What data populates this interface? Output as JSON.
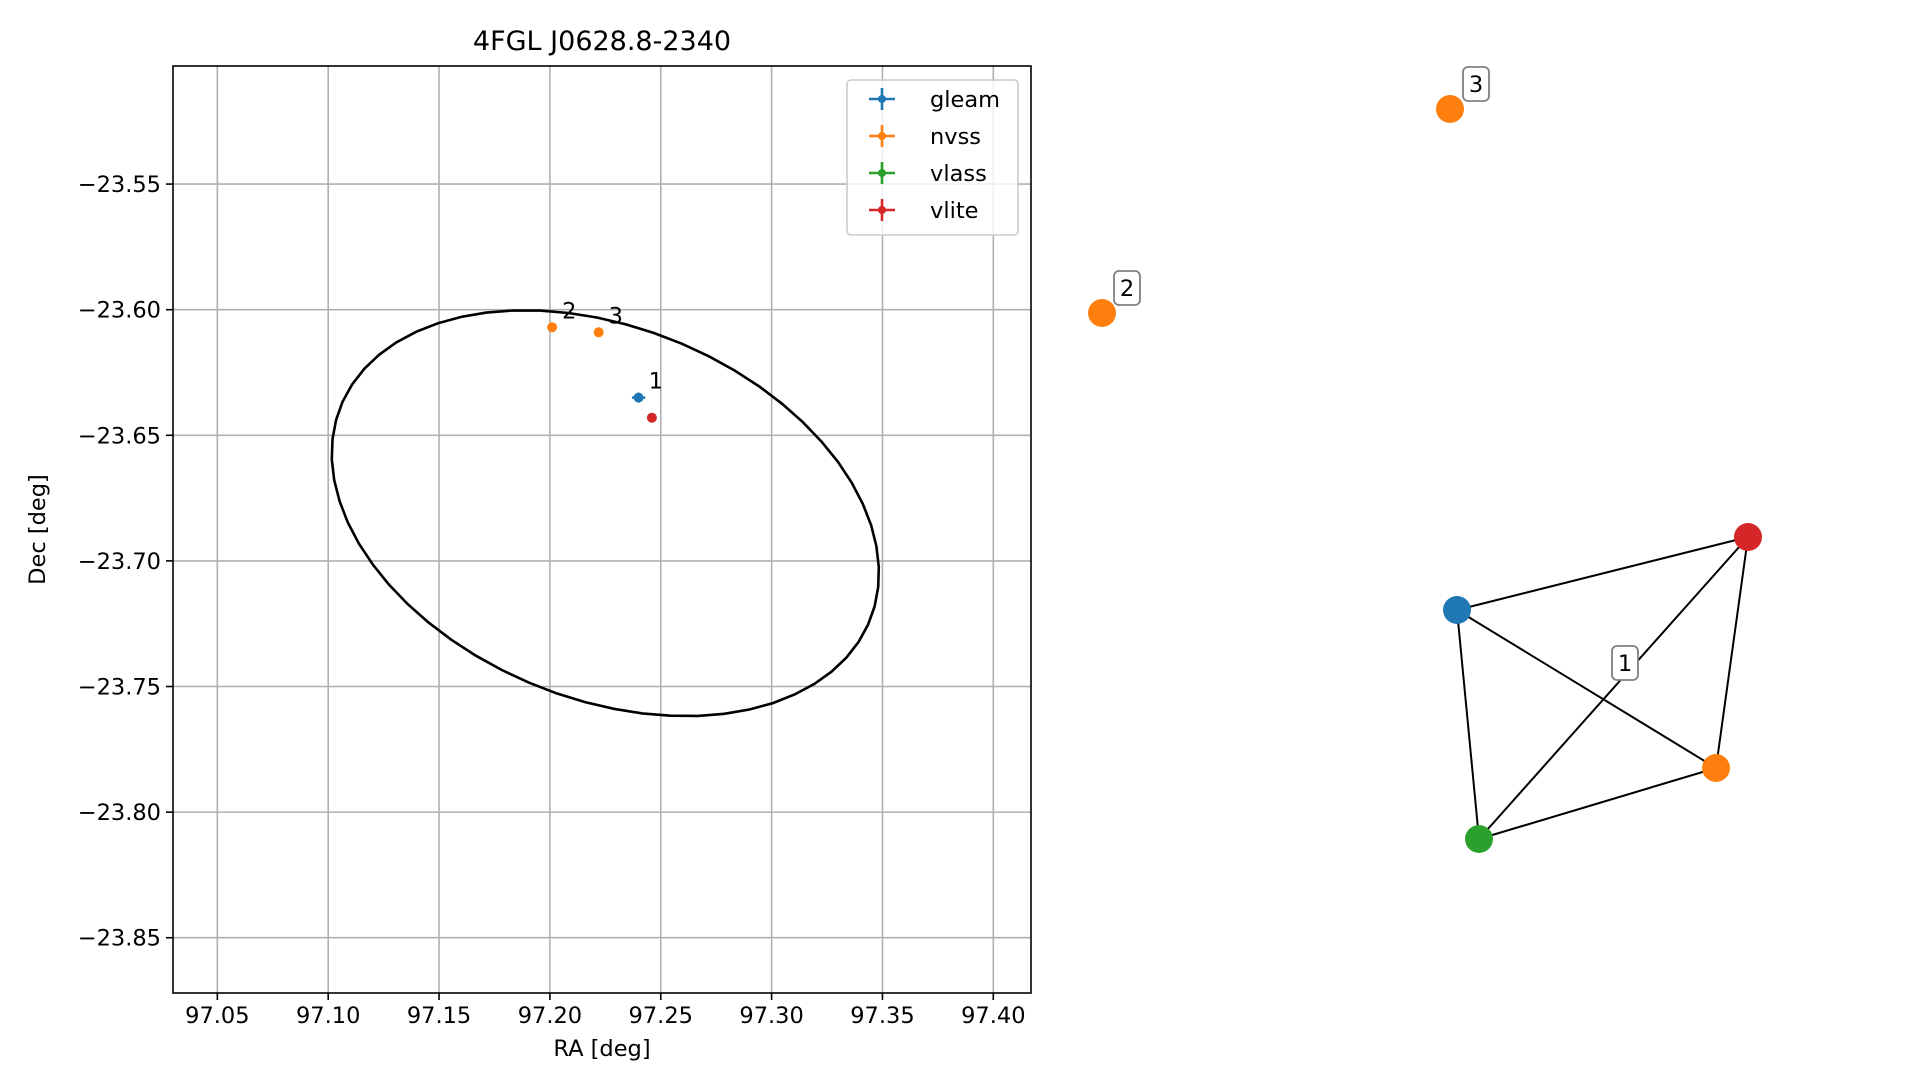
{
  "chart_data": [
    {
      "type": "scatter",
      "title": "4FGL J0628.8-2340",
      "xlabel": "RA [deg]",
      "ylabel": "Dec [deg]",
      "xlim": [
        97.03,
        97.417
      ],
      "ylim": [
        -23.872,
        -23.503
      ],
      "xticks": [
        97.05,
        97.1,
        97.15,
        97.2,
        97.25,
        97.3,
        97.35,
        97.4
      ],
      "xtick_labels": [
        "97.05",
        "97.10",
        "97.15",
        "97.20",
        "97.25",
        "97.30",
        "97.35",
        "97.40"
      ],
      "yticks": [
        -23.55,
        -23.6,
        -23.65,
        -23.7,
        -23.75,
        -23.8,
        -23.85
      ],
      "ytick_labels": [
        "−23.55",
        "−23.60",
        "−23.65",
        "−23.70",
        "−23.75",
        "−23.80",
        "−23.85"
      ],
      "grid": true,
      "legend_position": "top-right",
      "series": [
        {
          "name": "gleam",
          "color": "#1f77b4",
          "points": [
            {
              "x": 97.24,
              "y": -23.635,
              "label": "1",
              "xerr": 0.003,
              "yerr": 0.002
            }
          ]
        },
        {
          "name": "nvss",
          "color": "#ff7f0e",
          "points": [
            {
              "x": 97.201,
              "y": -23.607,
              "label": "2"
            },
            {
              "x": 97.222,
              "y": -23.609,
              "label": "3"
            }
          ]
        },
        {
          "name": "vlass",
          "color": "#2ca02c",
          "points": []
        },
        {
          "name": "vlite",
          "color": "#d62728",
          "points": [
            {
              "x": 97.246,
              "y": -23.643,
              "label": ""
            }
          ]
        }
      ],
      "ellipse": {
        "color": "#000000",
        "center": [
          97.225,
          -23.681
        ],
        "semi_major_deg": 0.127,
        "semi_minor_deg": 0.075,
        "angle_deg": -17
      }
    },
    {
      "type": "network",
      "nodes": [
        {
          "id": "3",
          "color": "#ff7f0e",
          "label": "3"
        },
        {
          "id": "2",
          "color": "#ff7f0e",
          "label": "2"
        },
        {
          "id": "c1-red",
          "color": "#d62728",
          "label": ""
        },
        {
          "id": "c1-blue",
          "color": "#1f77b4",
          "label": ""
        },
        {
          "id": "c1-orange",
          "color": "#ff7f0e",
          "label": ""
        },
        {
          "id": "c1-green",
          "color": "#2ca02c",
          "label": ""
        }
      ],
      "edges": [
        [
          "c1-blue",
          "c1-red"
        ],
        [
          "c1-blue",
          "c1-orange"
        ],
        [
          "c1-blue",
          "c1-green"
        ],
        [
          "c1-red",
          "c1-orange"
        ],
        [
          "c1-red",
          "c1-green"
        ],
        [
          "c1-orange",
          "c1-green"
        ]
      ],
      "group_labels": [
        "1"
      ]
    }
  ]
}
